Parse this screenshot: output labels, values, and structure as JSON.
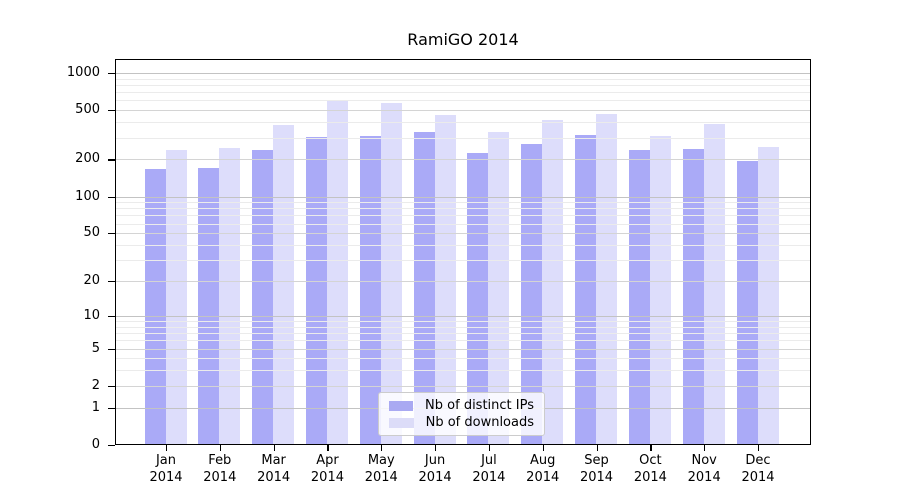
{
  "title": "RamiGO 2014",
  "year_label": "2014",
  "colors": {
    "bar_ips": "rgba(151,151,245,0.82)",
    "bar_downloads": "rgba(190,190,247,0.52)",
    "legend_swatch_ips": "#a9a9f2",
    "legend_swatch_downloads": "#dcdcf8",
    "grid_minor": "#ebebeb",
    "grid_labeled": "#d4d4d4",
    "grid_decade": "#c3c3c3",
    "axis": "#000000"
  },
  "chart_data": {
    "type": "bar",
    "title": "RamiGO 2014",
    "categories": [
      "Jan",
      "Feb",
      "Mar",
      "Apr",
      "May",
      "Jun",
      "Jul",
      "Aug",
      "Sep",
      "Oct",
      "Nov",
      "Dec"
    ],
    "year": "2014",
    "series": [
      {
        "name": "Nb of distinct IPs",
        "values": [
          167,
          170,
          238,
          306,
          311,
          332,
          227,
          268,
          317,
          240,
          244,
          196
        ]
      },
      {
        "name": "Nb of downloads",
        "values": [
          238,
          247,
          380,
          606,
          576,
          458,
          333,
          417,
          464,
          308,
          389,
          250
        ]
      }
    ],
    "yscale": "log1p",
    "yticks": [
      0,
      1,
      2,
      5,
      10,
      20,
      50,
      100,
      200,
      500,
      1000
    ],
    "ylim": [
      0,
      1000
    ],
    "xlabel": "",
    "ylabel": "",
    "grid": true,
    "legend_position": "inside-bottom-center"
  },
  "legend": {
    "items": [
      {
        "label": "Nb of distinct IPs"
      },
      {
        "label": "Nb of downloads"
      }
    ]
  }
}
